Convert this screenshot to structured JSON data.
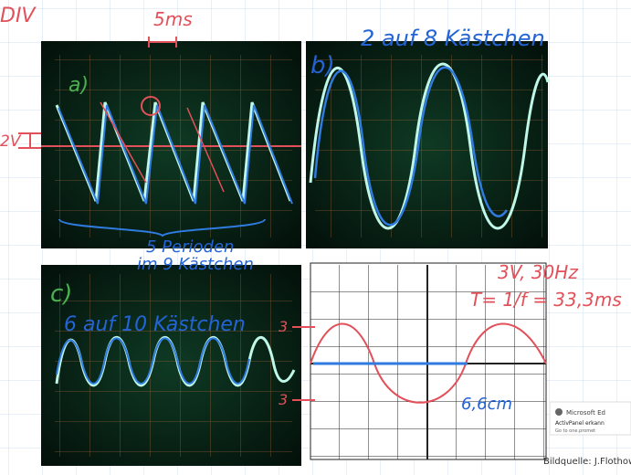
{
  "notes": {
    "div": "DIV",
    "time_div": "5ms",
    "volt_div": "2V",
    "label_a": "a)",
    "label_b": "b)",
    "label_c": "c)",
    "note_b": "2 auf 8 Kästchen",
    "note_a_line1": "5 Perioden",
    "note_a_line2": "im 9 Kästchen",
    "note_c": "6 auf 10 Kästchen",
    "note_d_line1": "3V, 30Hz",
    "note_d_line2": "T= 1/f = 33,3ms",
    "amp_top": "3",
    "amp_bottom": "3",
    "length": "6,6cm"
  },
  "credit": "Bildquelle: J.Flothow",
  "popup": {
    "title": "Microsoft Ed",
    "line1": "ActivPanel erkann",
    "line2": "Go to one.promet"
  }
}
